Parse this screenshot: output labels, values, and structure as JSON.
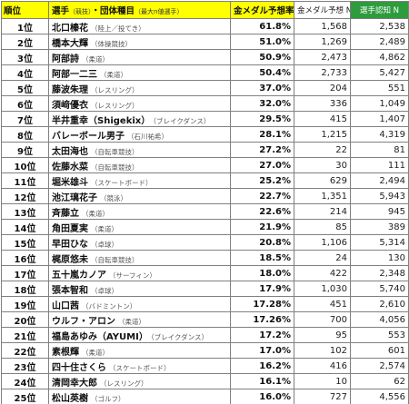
{
  "header": {
    "rank": "順位",
    "name": "選手",
    "name_sub1": "（競技）",
    "name_mid": "・団体種目",
    "name_sub2": "（最大n値選手）",
    "rate": "金メダル予想率",
    "votes": "金メダル予想 N",
    "aware": "選手認知 N"
  },
  "rows": [
    {
      "rank": "1位",
      "name": "北口榛花",
      "note": "（陸上／投てき）",
      "rate": "61.8%",
      "votes": "1,568",
      "aware": "2,538"
    },
    {
      "rank": "2位",
      "name": "橋本大輝",
      "note": "（体操競技）",
      "rate": "51.0%",
      "votes": "1,269",
      "aware": "2,489"
    },
    {
      "rank": "3位",
      "name": "阿部詩",
      "note": "（柔道）",
      "rate": "50.9%",
      "votes": "2,473",
      "aware": "4,862"
    },
    {
      "rank": "4位",
      "name": "阿部一二三",
      "note": "（柔道）",
      "rate": "50.4%",
      "votes": "2,733",
      "aware": "5,427"
    },
    {
      "rank": "5位",
      "name": "藤波朱理",
      "note": "（レスリング）",
      "rate": "37.0%",
      "votes": "204",
      "aware": "551"
    },
    {
      "rank": "6位",
      "name": "須﨑優衣",
      "note": "（レスリング）",
      "rate": "32.0%",
      "votes": "336",
      "aware": "1,049"
    },
    {
      "rank": "7位",
      "name": "半井重幸（Shigekix）",
      "note": "（ブレイクダンス）",
      "rate": "29.5%",
      "votes": "415",
      "aware": "1,407"
    },
    {
      "rank": "8位",
      "name": "バレーボール男子",
      "note": "（石川祐希）",
      "rate": "28.1%",
      "votes": "1,215",
      "aware": "4,319"
    },
    {
      "rank": "9位",
      "name": "太田海也",
      "note": "（自転車競技）",
      "rate": "27.2%",
      "votes": "22",
      "aware": "81"
    },
    {
      "rank": "10位",
      "name": "佐藤水菜",
      "note": "（自転車競技）",
      "rate": "27.0%",
      "votes": "30",
      "aware": "111"
    },
    {
      "rank": "11位",
      "name": "堀米雄斗",
      "note": "（スケートボード）",
      "rate": "25.2%",
      "votes": "629",
      "aware": "2,494"
    },
    {
      "rank": "12位",
      "name": "池江璃花子",
      "note": "（競泳）",
      "rate": "22.7%",
      "votes": "1,351",
      "aware": "5,943"
    },
    {
      "rank": "13位",
      "name": "斉藤立",
      "note": "（柔道）",
      "rate": "22.6%",
      "votes": "214",
      "aware": "945"
    },
    {
      "rank": "14位",
      "name": "角田夏実",
      "note": "（柔道）",
      "rate": "21.9%",
      "votes": "85",
      "aware": "389"
    },
    {
      "rank": "15位",
      "name": "早田ひな",
      "note": "（卓球）",
      "rate": "20.8%",
      "votes": "1,106",
      "aware": "5,314"
    },
    {
      "rank": "16位",
      "name": "梶原悠未",
      "note": "（自転車競技）",
      "rate": "18.5%",
      "votes": "24",
      "aware": "130"
    },
    {
      "rank": "17位",
      "name": "五十嵐カノア",
      "note": "（サーフィン）",
      "rate": "18.0%",
      "votes": "422",
      "aware": "2,348"
    },
    {
      "rank": "18位",
      "name": "張本智和",
      "note": "（卓球）",
      "rate": "17.9%",
      "votes": "1,030",
      "aware": "5,740"
    },
    {
      "rank": "19位",
      "name": "山口茜",
      "note": "（バドミントン）",
      "rate": "17.28%",
      "votes": "451",
      "aware": "2,610"
    },
    {
      "rank": "20位",
      "name": "ウルフ・アロン",
      "note": "（柔道）",
      "rate": "17.26%",
      "votes": "700",
      "aware": "4,056"
    },
    {
      "rank": "21位",
      "name": "福島あゆみ（AYUMI）",
      "note": "（ブレイクダンス）",
      "rate": "17.2%",
      "votes": "95",
      "aware": "553"
    },
    {
      "rank": "22位",
      "name": "素根輝",
      "note": "（柔道）",
      "rate": "17.0%",
      "votes": "102",
      "aware": "601"
    },
    {
      "rank": "23位",
      "name": "四十住さくら",
      "note": "（スケートボード）",
      "rate": "16.2%",
      "votes": "416",
      "aware": "2,574"
    },
    {
      "rank": "24位",
      "name": "清岡幸大郎",
      "note": "（レスリング）",
      "rate": "16.1%",
      "votes": "10",
      "aware": "62"
    },
    {
      "rank": "25位",
      "name": "松山英樹",
      "note": "（ゴルフ）",
      "rate": "16.0%",
      "votes": "727",
      "aware": "4,556"
    }
  ]
}
